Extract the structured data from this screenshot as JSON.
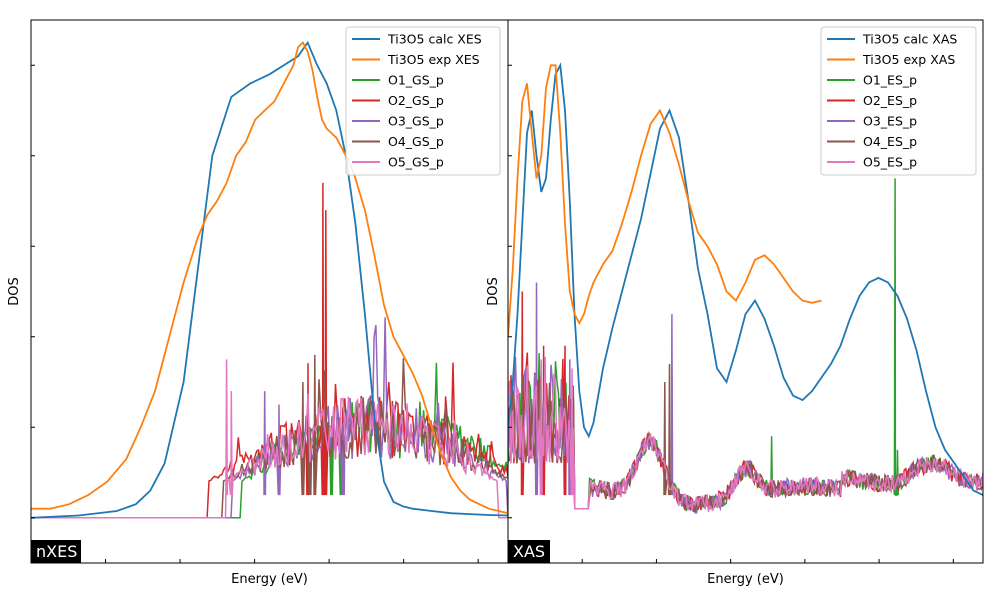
{
  "chart_data": [
    {
      "type": "line",
      "tag": "nXES",
      "xlabel": "Energy (eV)",
      "ylabel": "DOS",
      "xlim": [
        0,
        100
      ],
      "ylim": [
        -0.1,
        1.1
      ],
      "grid": false,
      "legend": "top-right",
      "tick_labels_shown": false,
      "series": [
        {
          "name": "Ti3O5 calc XES",
          "color": "#1f77b4",
          "x": [
            0,
            10,
            18,
            22,
            25,
            28,
            32,
            35,
            38,
            42,
            46,
            50,
            53,
            56,
            58,
            60,
            62,
            64,
            66,
            68,
            70,
            72,
            74,
            76,
            78,
            80,
            84,
            88,
            92,
            96,
            100
          ],
          "y": [
            0.0,
            0.005,
            0.015,
            0.03,
            0.06,
            0.12,
            0.3,
            0.55,
            0.8,
            0.93,
            0.96,
            0.98,
            1.0,
            1.02,
            1.05,
            1.0,
            0.96,
            0.9,
            0.8,
            0.65,
            0.45,
            0.22,
            0.08,
            0.035,
            0.025,
            0.02,
            0.015,
            0.01,
            0.008,
            0.006,
            0.005
          ]
        },
        {
          "name": "Ti3O5 exp XES",
          "color": "#ff7f0e",
          "x": [
            0,
            4,
            8,
            12,
            16,
            20,
            23,
            26,
            29,
            32,
            35,
            37,
            39,
            41,
            43,
            45,
            47,
            49,
            51,
            53,
            55,
            56,
            57,
            58,
            59,
            60,
            61,
            62,
            63,
            64,
            65,
            66,
            67,
            68,
            70,
            72,
            74,
            76,
            78,
            80,
            82,
            84,
            86,
            88,
            90,
            92,
            94,
            96,
            100
          ],
          "y": [
            0.02,
            0.02,
            0.03,
            0.05,
            0.08,
            0.13,
            0.2,
            0.28,
            0.4,
            0.52,
            0.62,
            0.67,
            0.7,
            0.74,
            0.8,
            0.83,
            0.88,
            0.9,
            0.92,
            0.96,
            1.0,
            1.04,
            1.05,
            1.03,
            0.99,
            0.93,
            0.88,
            0.86,
            0.85,
            0.84,
            0.82,
            0.8,
            0.78,
            0.75,
            0.68,
            0.58,
            0.47,
            0.4,
            0.36,
            0.32,
            0.27,
            0.2,
            0.14,
            0.09,
            0.06,
            0.04,
            0.03,
            0.02,
            0.01
          ]
        },
        {
          "name": "O1_GS_p",
          "color": "#2ca02c"
        },
        {
          "name": "O2_GS_p",
          "color": "#d62728"
        },
        {
          "name": "O3_GS_p",
          "color": "#9467bd"
        },
        {
          "name": "O4_GS_p",
          "color": "#8c564b"
        },
        {
          "name": "O5_GS_p",
          "color": "#e377c2"
        }
      ]
    },
    {
      "type": "line",
      "tag": "XAS",
      "xlabel": "Energy (eV)",
      "ylabel": "DOS",
      "xlim": [
        0,
        100
      ],
      "ylim": [
        -0.1,
        1.1
      ],
      "grid": false,
      "legend": "top-right",
      "tick_labels_shown": false,
      "series": [
        {
          "name": "Ti3O5 calc XAS",
          "color": "#1f77b4",
          "x": [
            0,
            1,
            2,
            3,
            4,
            5,
            6,
            7,
            8,
            9,
            10,
            11,
            12,
            13,
            14,
            15,
            16,
            17,
            18,
            20,
            22,
            24,
            26,
            28,
            30,
            32,
            34,
            36,
            38,
            40,
            42,
            44,
            46,
            48,
            50,
            52,
            54,
            56,
            58,
            60,
            62,
            64,
            66,
            68,
            70,
            72,
            74,
            76,
            78,
            80,
            82,
            84,
            86,
            88,
            90,
            92,
            94,
            96,
            98,
            100
          ],
          "y": [
            0.2,
            0.3,
            0.45,
            0.65,
            0.85,
            0.9,
            0.8,
            0.72,
            0.75,
            0.88,
            0.98,
            1.0,
            0.9,
            0.7,
            0.45,
            0.28,
            0.2,
            0.18,
            0.21,
            0.33,
            0.42,
            0.5,
            0.58,
            0.66,
            0.76,
            0.86,
            0.9,
            0.84,
            0.7,
            0.55,
            0.45,
            0.33,
            0.3,
            0.37,
            0.45,
            0.48,
            0.44,
            0.38,
            0.31,
            0.27,
            0.26,
            0.28,
            0.31,
            0.34,
            0.38,
            0.44,
            0.49,
            0.52,
            0.53,
            0.52,
            0.49,
            0.44,
            0.37,
            0.28,
            0.2,
            0.15,
            0.12,
            0.09,
            0.06,
            0.05
          ]
        },
        {
          "name": "Ti3O5 exp XAS",
          "color": "#ff7f0e",
          "x": [
            0,
            1,
            2,
            3,
            4,
            5,
            6,
            7,
            8,
            9,
            10,
            11,
            12,
            13,
            14,
            15,
            16,
            17,
            18,
            20,
            22,
            24,
            26,
            28,
            30,
            32,
            34,
            36,
            38,
            40,
            42,
            44,
            46,
            48,
            50,
            52,
            54,
            56,
            58,
            60,
            62,
            64,
            66
          ],
          "y": [
            0.4,
            0.55,
            0.75,
            0.92,
            0.96,
            0.85,
            0.75,
            0.8,
            0.95,
            1.0,
            1.0,
            0.85,
            0.65,
            0.5,
            0.45,
            0.43,
            0.45,
            0.49,
            0.52,
            0.56,
            0.59,
            0.65,
            0.72,
            0.8,
            0.87,
            0.9,
            0.85,
            0.78,
            0.7,
            0.63,
            0.6,
            0.56,
            0.5,
            0.48,
            0.52,
            0.57,
            0.58,
            0.56,
            0.53,
            0.5,
            0.48,
            0.475,
            0.48
          ]
        },
        {
          "name": "O1_ES_p",
          "color": "#2ca02c"
        },
        {
          "name": "O2_ES_p",
          "color": "#d62728"
        },
        {
          "name": "O3_ES_p",
          "color": "#9467bd"
        },
        {
          "name": "O4_ES_p",
          "color": "#8c564b"
        },
        {
          "name": "O5_ES_p",
          "color": "#e377c2"
        }
      ]
    }
  ]
}
